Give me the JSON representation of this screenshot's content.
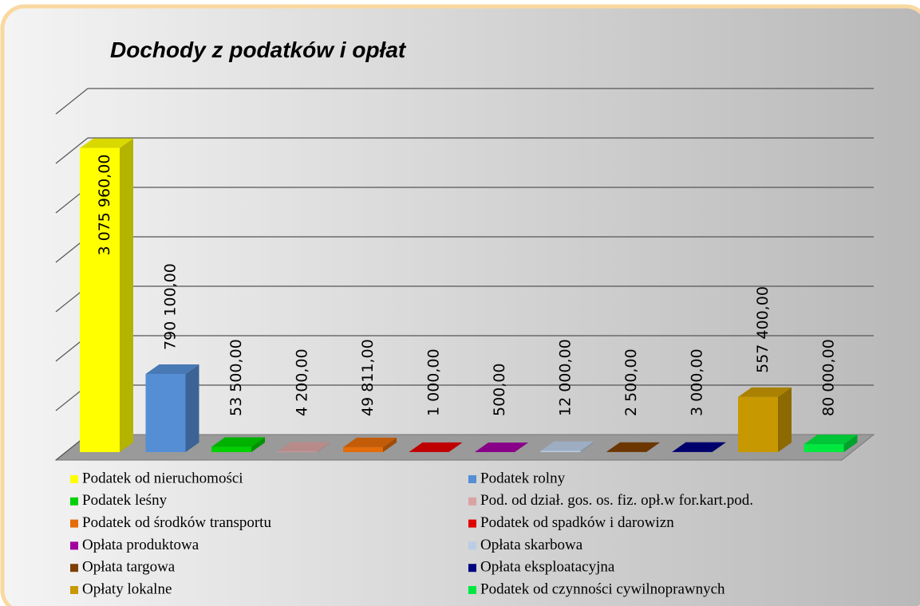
{
  "chart_data": {
    "type": "bar3d",
    "title": "Dochody z podatków i opłat",
    "categories": [
      "Podatek od nieruchomości",
      "Podatek rolny",
      "Podatek leśny",
      "Pod. od dział. gos. os. fiz. opł.w for.kart.pod.",
      "Podatek od środków transportu",
      "Podatek od spadków i darowizn",
      "Opłata produktowa",
      "Opłata skarbowa",
      "Opłata targowa",
      "Opłata eksploatacyjna",
      "Opłaty lokalne",
      "Podatek od czynności cywilnoprawnych"
    ],
    "values": [
      3075960,
      790100,
      53500,
      4200,
      49811,
      1000,
      500,
      12000,
      2500,
      3000,
      557400,
      80000
    ],
    "value_labels": [
      "3 075 960,00",
      "790 100,00",
      "53 500,00",
      "4 200,00",
      "49 811,00",
      "1 000,00",
      "500,00",
      "12 000,00",
      "2 500,00",
      "3 000,00",
      "557 400,00",
      "80 000,00"
    ],
    "colors": [
      "#ffff00",
      "#558ed5",
      "#00d000",
      "#d9a3a3",
      "#e46c0a",
      "#e00000",
      "#a000a0",
      "#b9cde5",
      "#7f3f00",
      "#000080",
      "#c89800",
      "#00e840"
    ],
    "ylim": [
      0,
      3500000
    ],
    "yticks": [
      0,
      500000,
      1000000,
      1500000,
      2000000,
      2500000,
      3000000,
      3500000
    ],
    "grid": true,
    "legend": "bottom"
  }
}
